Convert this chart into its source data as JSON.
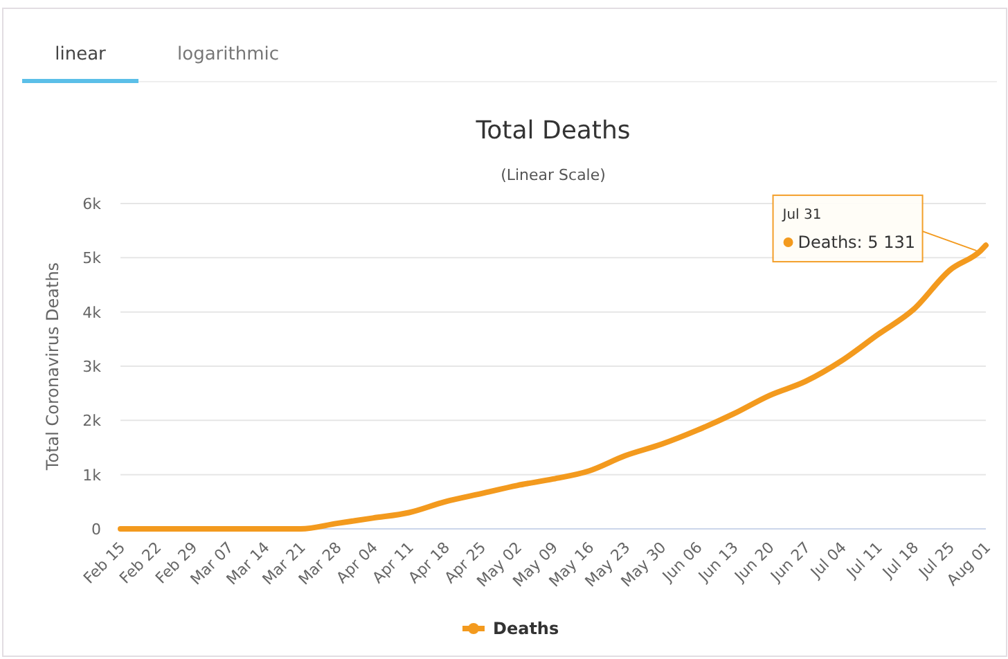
{
  "chart_data": {
    "type": "line",
    "title": "Total Deaths",
    "subtitle": "(Linear Scale)",
    "ylabel": "Total Coronavirus Deaths",
    "annotations": [
      "linear",
      "logarithmic",
      {
        "text": "Jul 31\nDeaths: 5 131",
        "x": "--07-31",
        "y": 5131
      }
    ],
    "x": [
      "--02-15",
      "--02-22",
      "--02-29",
      "--03-07",
      "--03-14",
      "--03-21",
      "--03-28",
      "--04-04",
      "--04-11",
      "--04-18",
      "--04-25",
      "--05-02",
      "--05-09",
      "--05-16",
      "--05-23",
      "--05-30",
      "--06-06",
      "--06-13",
      "--06-20",
      "--06-27",
      "--07-04",
      "--07-11",
      "--07-18",
      "--07-25",
      "--07-31",
      "--08-01"
    ],
    "series": [
      {
        "name": "Deaths",
        "color": "#f39a1e",
        "values": [
          0,
          0,
          0,
          0,
          0,
          0,
          100,
          200,
          300,
          500,
          650,
          800,
          920,
          1070,
          1350,
          1560,
          1820,
          2120,
          2460,
          2720,
          3100,
          3580,
          4050,
          4770,
          5131,
          5230
        ]
      }
    ],
    "xlim": [
      "--02-15",
      "--08-01"
    ],
    "xticks": [
      {
        "value": "--02-15",
        "label": "Feb 15"
      },
      {
        "value": "--02-22",
        "label": "Feb 22"
      },
      {
        "value": "--02-29",
        "label": "Feb 29"
      },
      {
        "value": "--03-07",
        "label": "Mar 07"
      },
      {
        "value": "--03-14",
        "label": "Mar 14"
      },
      {
        "value": "--03-21",
        "label": "Mar 21"
      },
      {
        "value": "--03-28",
        "label": "Mar 28"
      },
      {
        "value": "--04-04",
        "label": "Apr 04"
      },
      {
        "value": "--04-11",
        "label": "Apr 11"
      },
      {
        "value": "--04-18",
        "label": "Apr 18"
      },
      {
        "value": "--04-25",
        "label": "Apr 25"
      },
      {
        "value": "--05-02",
        "label": "May 02"
      },
      {
        "value": "--05-09",
        "label": "May 09"
      },
      {
        "value": "--05-16",
        "label": "May 16"
      },
      {
        "value": "--05-23",
        "label": "May 23"
      },
      {
        "value": "--05-30",
        "label": "May 30"
      },
      {
        "value": "--06-06",
        "label": "Jun 06"
      },
      {
        "value": "--06-13",
        "label": "Jun 13"
      },
      {
        "value": "--06-20",
        "label": "Jun 20"
      },
      {
        "value": "--06-27",
        "label": "Jun 27"
      },
      {
        "value": "--07-04",
        "label": "Jul 04"
      },
      {
        "value": "--07-11",
        "label": "Jul 11"
      },
      {
        "value": "--07-18",
        "label": "Jul 18"
      },
      {
        "value": "--07-25",
        "label": "Jul 25"
      },
      {
        "value": "--08-01",
        "label": "Aug 01"
      }
    ],
    "ylim": [
      0,
      6000
    ],
    "yticks": [
      0,
      {
        "value": 1000,
        "label": "1k"
      },
      {
        "value": 2000,
        "label": "2k"
      },
      {
        "value": 3000,
        "label": "3k"
      },
      {
        "value": 4000,
        "label": "4k"
      },
      {
        "value": 5000,
        "label": "5k"
      },
      {
        "value": 6000,
        "label": "6k"
      }
    ],
    "grid": "y",
    "legend": "bottom",
    "marker": "none",
    "line_style": "solid"
  }
}
